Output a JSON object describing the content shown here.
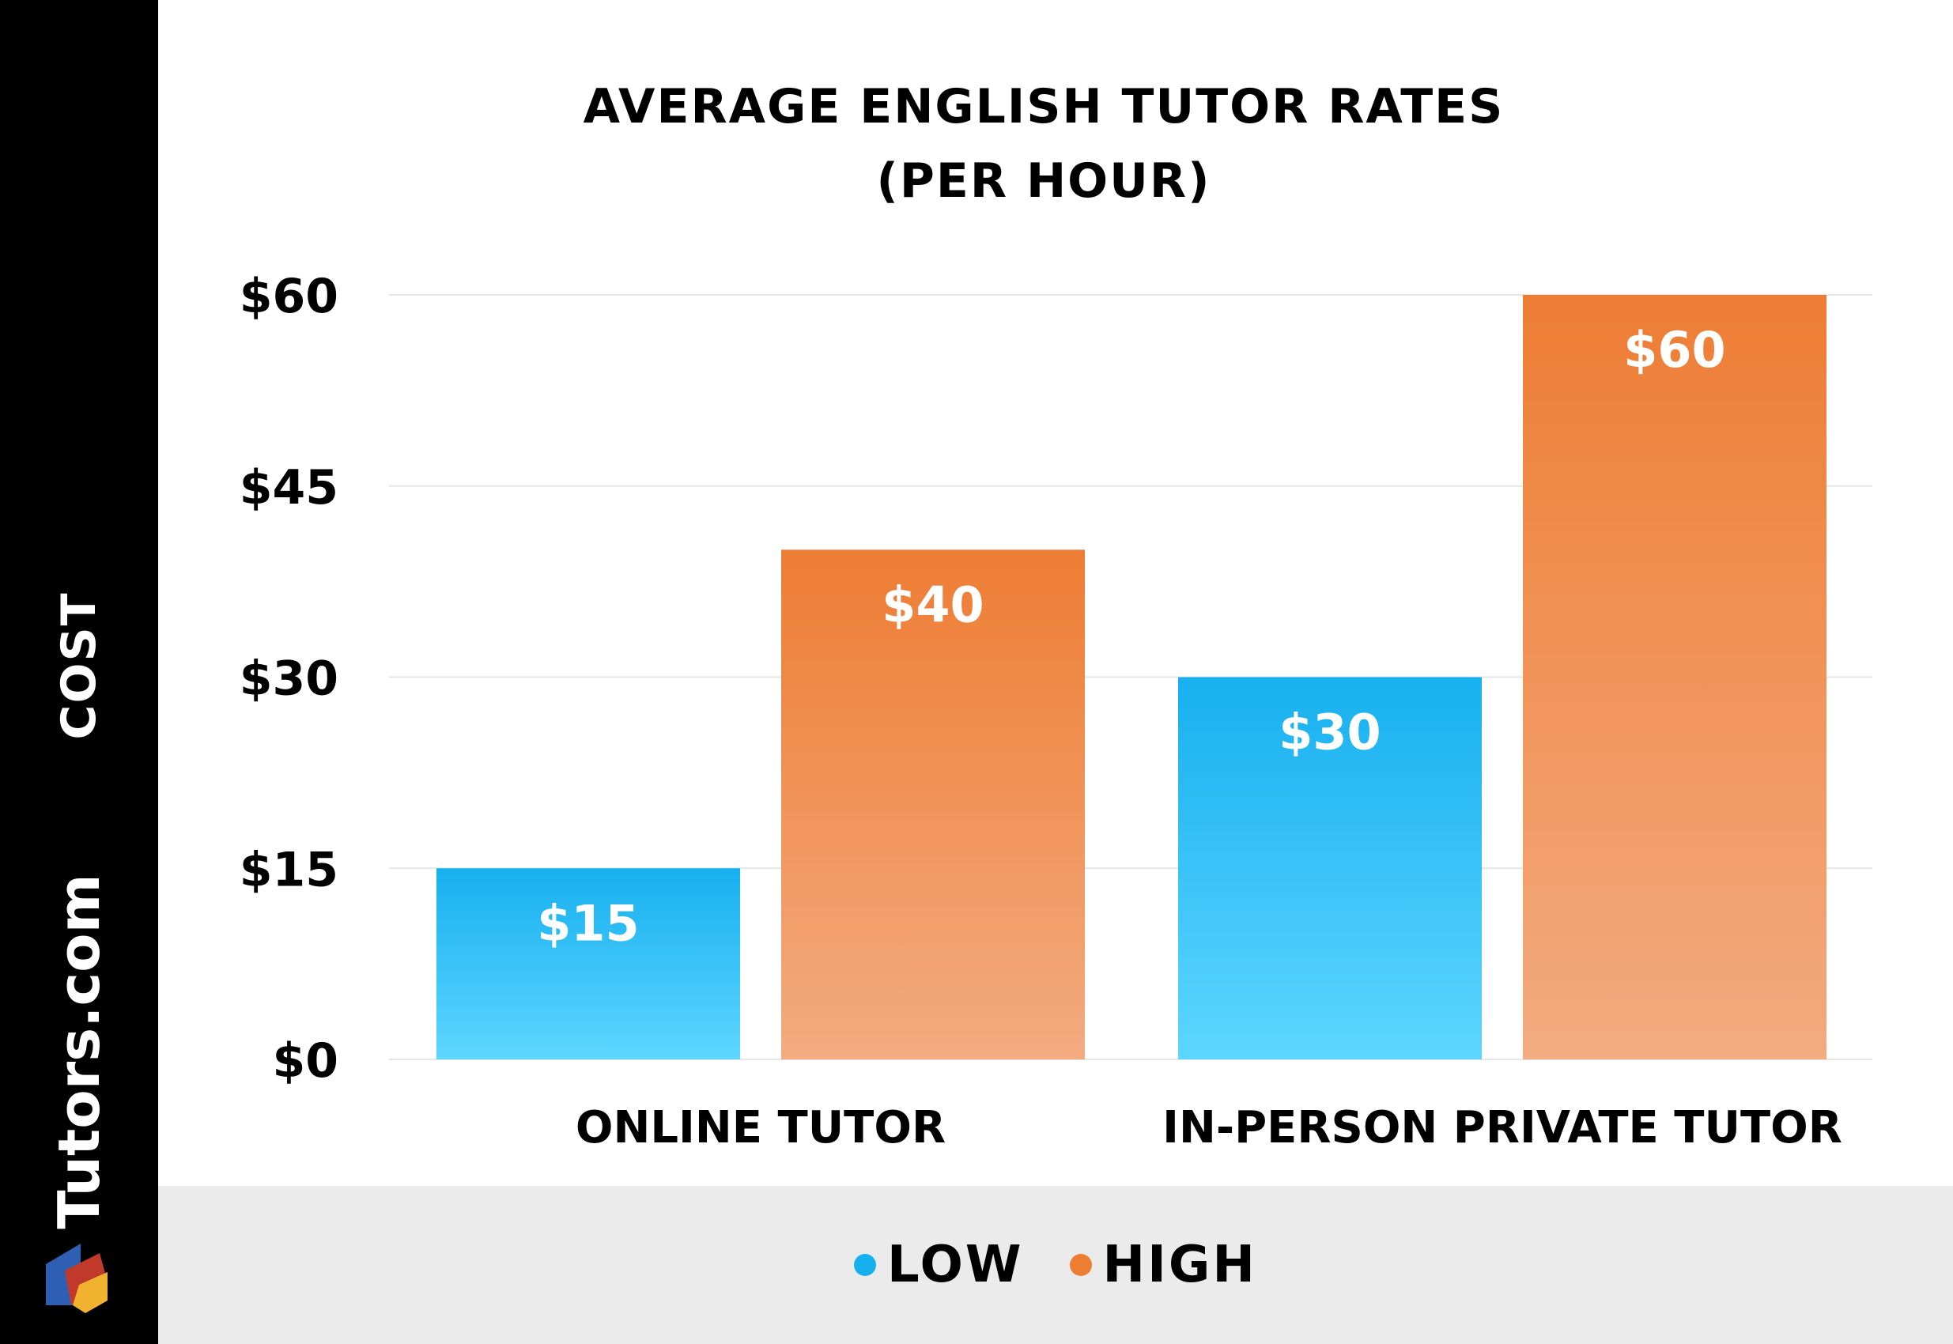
{
  "sidebar": {
    "axis_title": "COST",
    "brand": "Tutors.com"
  },
  "colors": {
    "low": "#17b0ef",
    "low_light": "#5dd6ff",
    "high": "#ee7d34",
    "high_light": "#f3ab80",
    "gridline": "#e6e6e6",
    "legend_band": "#ebebeb"
  },
  "chart_data": {
    "type": "bar",
    "title": "AVERAGE ENGLISH TUTOR RATES",
    "subtitle": "(PER HOUR)",
    "categories": [
      "ONLINE TUTOR",
      "IN-PERSON PRIVATE TUTOR"
    ],
    "series": [
      {
        "name": "LOW",
        "values": [
          15,
          30
        ],
        "labels": [
          "$15",
          "$30"
        ]
      },
      {
        "name": "HIGH",
        "values": [
          40,
          60
        ],
        "labels": [
          "$40",
          "$60"
        ]
      }
    ],
    "ylabel": "COST",
    "ylim": [
      0,
      60
    ],
    "yticks": [
      0,
      15,
      30,
      45,
      60
    ],
    "ytick_labels": [
      "$0",
      "$15",
      "$30",
      "$45",
      "$60"
    ],
    "grid": true,
    "legend_placement": "bottom"
  }
}
